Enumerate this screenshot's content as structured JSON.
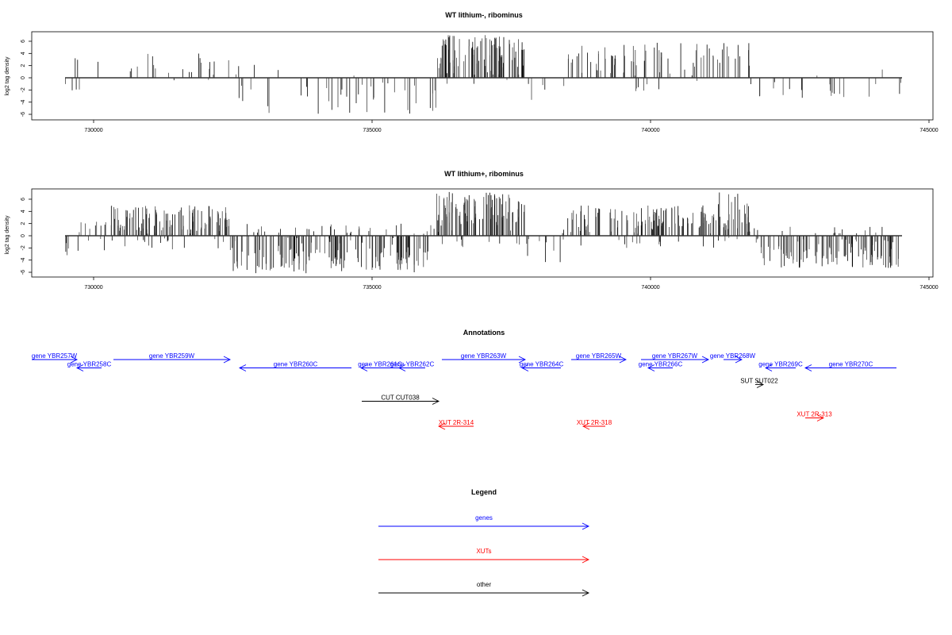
{
  "chart_data": [
    {
      "type": "bar",
      "title": "WT lithium-, ribominus",
      "ylabel": "log2 tag density",
      "xlabel": "",
      "xlim": [
        728880,
        745100
      ],
      "ylim": [
        -7,
        7.3
      ],
      "x_ticks": [
        730000,
        735000,
        740000,
        745000
      ],
      "y_ticks": [
        -6,
        -4,
        -2,
        0,
        2,
        4,
        6
      ],
      "baseline": [
        729487,
        744516
      ],
      "density_regions": [
        {
          "start": 729487,
          "end": 730313,
          "bars_per_kb": 8,
          "max_pos": 3.5,
          "max_neg": 3.3,
          "pos_fraction": 0.5
        },
        {
          "start": 730313,
          "end": 732450,
          "bars_per_kb": 10,
          "max_pos": 4.0,
          "max_neg": 0.5,
          "pos_fraction": 0.9
        },
        {
          "start": 732450,
          "end": 736154,
          "bars_per_kb": 12,
          "max_pos": 2.5,
          "max_neg": 6.0,
          "pos_fraction": 0.15
        },
        {
          "start": 736154,
          "end": 737749,
          "bars_per_kb": 60,
          "max_pos": 7.2,
          "max_neg": 1.0,
          "pos_fraction": 0.97
        },
        {
          "start": 737749,
          "end": 738504,
          "bars_per_kb": 6,
          "max_pos": 1.0,
          "max_neg": 4.0,
          "pos_fraction": 0.2
        },
        {
          "start": 738504,
          "end": 741781,
          "bars_per_kb": 25,
          "max_pos": 5.8,
          "max_neg": 2.3,
          "pos_fraction": 0.9
        },
        {
          "start": 741781,
          "end": 744516,
          "bars_per_kb": 8,
          "max_pos": 1.5,
          "max_neg": 3.3,
          "pos_fraction": 0.15
        }
      ]
    },
    {
      "type": "bar",
      "title": "WT lithium+, ribominus",
      "ylabel": "log2 tag density",
      "xlabel": "",
      "xlim": [
        728880,
        745100
      ],
      "ylim": [
        -7,
        7.3
      ],
      "x_ticks": [
        730000,
        735000,
        740000,
        745000
      ],
      "y_ticks": [
        -6,
        -4,
        -2,
        0,
        2,
        4,
        6
      ],
      "baseline": [
        729487,
        744516
      ],
      "density_regions": [
        {
          "start": 729487,
          "end": 730313,
          "bars_per_kb": 20,
          "max_pos": 2.3,
          "max_neg": 3.5,
          "pos_fraction": 0.5
        },
        {
          "start": 730313,
          "end": 732450,
          "bars_per_kb": 60,
          "max_pos": 5.0,
          "max_neg": 2.5,
          "pos_fraction": 0.85
        },
        {
          "start": 732450,
          "end": 736154,
          "bars_per_kb": 45,
          "max_pos": 2.0,
          "max_neg": 6.2,
          "pos_fraction": 0.2
        },
        {
          "start": 736154,
          "end": 737749,
          "bars_per_kb": 70,
          "max_pos": 7.3,
          "max_neg": 2.0,
          "pos_fraction": 0.9
        },
        {
          "start": 737749,
          "end": 738504,
          "bars_per_kb": 15,
          "max_pos": 1.0,
          "max_neg": 4.5,
          "pos_fraction": 0.2
        },
        {
          "start": 738504,
          "end": 741211,
          "bars_per_kb": 45,
          "max_pos": 5.0,
          "max_neg": 2.0,
          "pos_fraction": 0.85
        },
        {
          "start": 741211,
          "end": 741781,
          "bars_per_kb": 60,
          "max_pos": 7.2,
          "max_neg": 1.0,
          "pos_fraction": 0.9
        },
        {
          "start": 741781,
          "end": 744516,
          "bars_per_kb": 45,
          "max_pos": 1.5,
          "max_neg": 5.3,
          "pos_fraction": 0.1
        }
      ]
    }
  ],
  "annotations": {
    "title": "Annotations",
    "colors": {
      "gene": "#0000ff",
      "xut": "#ff0000",
      "other": "#000000"
    },
    "features": [
      {
        "label": "gene YBR257W",
        "type": "gene",
        "start": 728889,
        "end": 729701,
        "strand": "+",
        "row": 0
      },
      {
        "label": "gene YBR258C",
        "type": "gene",
        "start": 729701,
        "end": 730142,
        "strand": "-",
        "row": 1
      },
      {
        "label": "gene YBR259W",
        "type": "gene",
        "start": 730356,
        "end": 732450,
        "strand": "+",
        "row": 0
      },
      {
        "label": "gene YBR260C",
        "type": "gene",
        "start": 732621,
        "end": 734630,
        "strand": "-",
        "row": 1
      },
      {
        "label": "gene YBR261C",
        "type": "gene",
        "start": 734801,
        "end": 735484,
        "strand": "-",
        "row": 1
      },
      {
        "label": "gene YBR262C",
        "type": "gene",
        "start": 735484,
        "end": 735954,
        "strand": "-",
        "row": 1
      },
      {
        "label": "gene YBR263W",
        "type": "gene",
        "start": 736253,
        "end": 737749,
        "strand": "+",
        "row": 0
      },
      {
        "label": "gene YBR264C",
        "type": "gene",
        "start": 737692,
        "end": 738390,
        "strand": "-",
        "row": 1
      },
      {
        "label": "gene YBR265W",
        "type": "gene",
        "start": 738575,
        "end": 739558,
        "strand": "+",
        "row": 0
      },
      {
        "label": "gene YBR266C",
        "type": "gene",
        "start": 739957,
        "end": 740399,
        "strand": "-",
        "row": 1
      },
      {
        "label": "gene YBR267W",
        "type": "gene",
        "start": 739829,
        "end": 741040,
        "strand": "+",
        "row": 0
      },
      {
        "label": "gene YBR268W",
        "type": "gene",
        "start": 741311,
        "end": 741638,
        "strand": "+",
        "row": 0
      },
      {
        "label": "gene YBR269C",
        "type": "gene",
        "start": 742066,
        "end": 742607,
        "strand": "-",
        "row": 1
      },
      {
        "label": "gene YBR270C",
        "type": "gene",
        "start": 742778,
        "end": 744416,
        "strand": "-",
        "row": 1
      },
      {
        "label": "SUT SUT022",
        "type": "other",
        "start": 741880,
        "end": 742023,
        "strand": "+",
        "row": 3
      },
      {
        "label": "CUT CUT038",
        "type": "other",
        "start": 734815,
        "end": 736197,
        "strand": "+",
        "row": 5
      },
      {
        "label": "XUT 2R-313",
        "type": "xut",
        "start": 742778,
        "end": 743105,
        "strand": "+",
        "row": 7
      },
      {
        "label": "XUT 2R-314",
        "type": "xut",
        "start": 736197,
        "end": 736823,
        "strand": "-",
        "row": 8
      },
      {
        "label": "XUT 2R-318",
        "type": "xut",
        "start": 738789,
        "end": 739188,
        "strand": "-",
        "row": 8
      }
    ]
  },
  "legend": {
    "title": "Legend",
    "items": [
      {
        "label": "genes",
        "type": "gene"
      },
      {
        "label": "XUTs",
        "type": "xut"
      },
      {
        "label": "other",
        "type": "other"
      }
    ]
  }
}
